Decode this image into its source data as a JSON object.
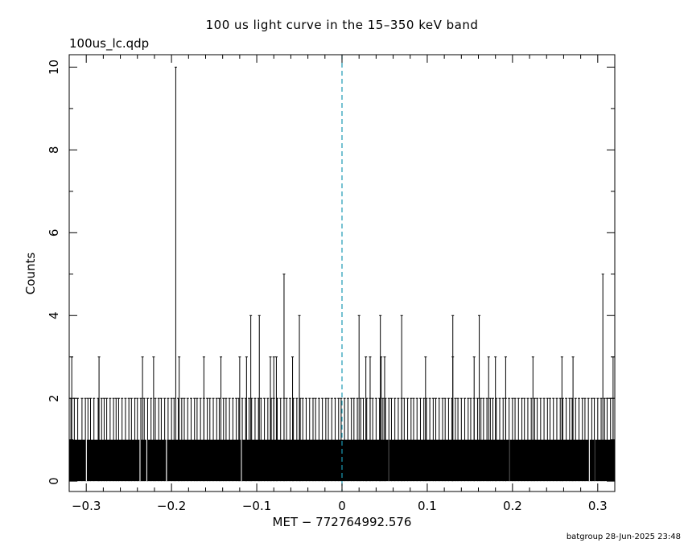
{
  "header": {
    "title": "100 us light curve in the 15–350 keV band",
    "subtitle": "100us_lc.qdp"
  },
  "footer": {
    "text": "batgroup 28-Jun-2025 23:48"
  },
  "chart_data": {
    "type": "bar",
    "title": "100 us light curve in the 15–350 keV band",
    "xlabel": "MET − 772764992.576",
    "ylabel": "Counts",
    "xlim": [
      -0.32,
      0.32
    ],
    "ylim": [
      -0.25,
      10.3
    ],
    "xticks": [
      -0.3,
      -0.2,
      -0.1,
      0,
      0.1,
      0.2,
      0.3
    ],
    "xtick_labels": [
      "−0.3",
      "−0.2",
      "−0.1",
      "0",
      "0.1",
      "0.2",
      "0.3"
    ],
    "yticks": [
      0,
      2,
      4,
      6,
      8,
      10
    ],
    "ytick_labels": [
      "0",
      "2",
      "4",
      "6",
      "8",
      "10"
    ],
    "bin_width": 0.0001,
    "baseline_counts": 1,
    "zero_bins": [
      -0.3,
      -0.237,
      -0.229,
      -0.206,
      -0.118,
      0.055,
      0.196,
      0.29,
      0.296
    ],
    "count2_bins": [
      -0.318,
      -0.314,
      -0.31,
      -0.305,
      -0.301,
      -0.298,
      -0.295,
      -0.291,
      -0.286,
      -0.282,
      -0.279,
      -0.276,
      -0.272,
      -0.268,
      -0.265,
      -0.262,
      -0.258,
      -0.254,
      -0.25,
      -0.247,
      -0.243,
      -0.24,
      -0.236,
      -0.232,
      -0.228,
      -0.224,
      -0.219,
      -0.215,
      -0.212,
      -0.208,
      -0.204,
      -0.2,
      -0.197,
      -0.192,
      -0.188,
      -0.185,
      -0.181,
      -0.177,
      -0.173,
      -0.17,
      -0.166,
      -0.162,
      -0.158,
      -0.155,
      -0.151,
      -0.147,
      -0.144,
      -0.139,
      -0.136,
      -0.132,
      -0.128,
      -0.124,
      -0.121,
      -0.117,
      -0.113,
      -0.109,
      -0.106,
      -0.102,
      -0.098,
      -0.095,
      -0.091,
      -0.087,
      -0.083,
      -0.08,
      -0.076,
      -0.072,
      -0.068,
      -0.065,
      -0.061,
      -0.057,
      -0.053,
      -0.049,
      -0.046,
      -0.042,
      -0.038,
      -0.034,
      -0.031,
      -0.027,
      -0.023,
      -0.019,
      -0.016,
      -0.012,
      -0.008,
      -0.004,
      -0.001,
      0.003,
      0.007,
      0.011,
      0.014,
      0.018,
      0.022,
      0.025,
      0.029,
      0.033,
      0.036,
      0.04,
      0.044,
      0.048,
      0.051,
      0.055,
      0.058,
      0.062,
      0.066,
      0.07,
      0.073,
      0.077,
      0.081,
      0.084,
      0.088,
      0.092,
      0.096,
      0.099,
      0.103,
      0.107,
      0.11,
      0.114,
      0.118,
      0.121,
      0.125,
      0.129,
      0.133,
      0.136,
      0.14,
      0.144,
      0.148,
      0.151,
      0.155,
      0.159,
      0.163,
      0.166,
      0.17,
      0.174,
      0.177,
      0.181,
      0.185,
      0.189,
      0.192,
      0.196,
      0.2,
      0.203,
      0.207,
      0.211,
      0.214,
      0.218,
      0.222,
      0.226,
      0.229,
      0.233,
      0.237,
      0.241,
      0.244,
      0.248,
      0.252,
      0.256,
      0.259,
      0.263,
      0.267,
      0.27,
      0.274,
      0.278,
      0.282,
      0.285,
      0.289,
      0.293,
      0.296,
      0.3,
      0.304,
      0.308,
      0.311,
      0.315,
      0.318
    ],
    "count3_bins": [
      -0.317,
      -0.285,
      -0.234,
      -0.221,
      -0.191,
      -0.162,
      -0.142,
      -0.12,
      -0.112,
      -0.084,
      -0.08,
      -0.077,
      -0.058,
      0.028,
      0.033,
      0.046,
      0.05,
      0.098,
      0.13,
      0.155,
      0.172,
      0.18,
      0.192,
      0.224,
      0.258,
      0.271,
      0.318
    ],
    "count4_bins": [
      -0.107,
      -0.097,
      -0.05,
      0.02,
      0.045,
      0.07,
      0.13,
      0.161
    ],
    "count5_bins": [
      -0.068,
      0.306
    ],
    "count10_bins": [
      -0.195
    ],
    "trigger_line": {
      "x": 0,
      "color": "#1a9ab4"
    },
    "colors": {
      "bars": "#000000",
      "axes": "#000000",
      "trigger": "#1a9ab4"
    }
  }
}
